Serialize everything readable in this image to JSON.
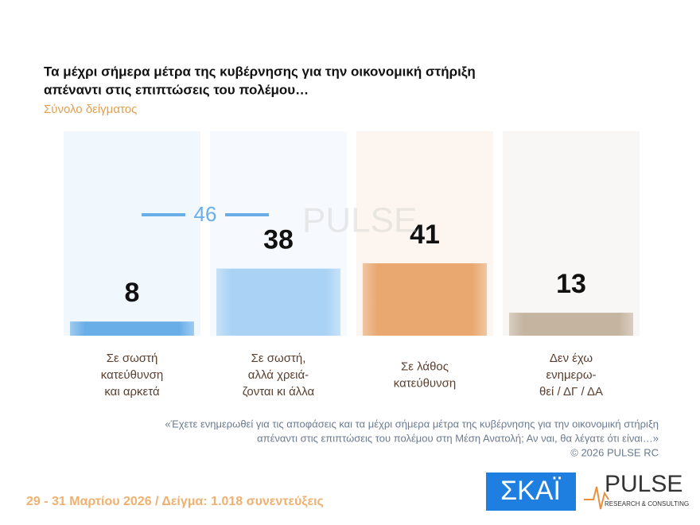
{
  "chart_data": {
    "type": "bar",
    "title": [
      "Τα μέχρι σήμερα μέτρα της κυβέρνησης για την οικονομική στήριξη",
      "απέναντι στις επιπτώσεις του πολέμου…"
    ],
    "subtitle": "Σύνολο δείγματος",
    "categories": [
      [
        "Σε σωστή",
        "κατεύθυνση",
        "και αρκετά"
      ],
      [
        "Σε σωστή,",
        "αλλά χρειά-",
        "ζονται κι άλλα"
      ],
      [
        "Σε λάθος",
        "κατεύθυνση"
      ],
      [
        "Δεν έχω",
        "ενημερω-",
        "θεί / ΔΓ / ΔΑ"
      ]
    ],
    "values": [
      8,
      38,
      41,
      13
    ],
    "colors": [
      "#6aaee8",
      "#a9d2f5",
      "#e8a870",
      "#c4b4a0"
    ],
    "bracket": {
      "value": 46,
      "spans": [
        0,
        1
      ],
      "color": "#6aaee8"
    },
    "note": [
      "«Έχετε ενημερωθεί για τις αποφάσεις και τα μέχρι σήμερα  μέτρα της κυβέρνησης για την οικονομική στήριξη",
      "απέναντι στις επιπτώσεις του πολέμου στη Μέση Ανατολή; Αν ναι, θα λέγατε ότι είναι…»"
    ],
    "copyright": "©  2026  PULSE RC",
    "footer": "29 - 31  Μαρτίου 2026  /  Δείγμα:  1.018 συνεντεύξεις",
    "logos": {
      "channel": "ΣΚΑΪ",
      "pulse": "PULSE",
      "pulse_tagline": "RESEARCH & CONSULTING"
    }
  }
}
